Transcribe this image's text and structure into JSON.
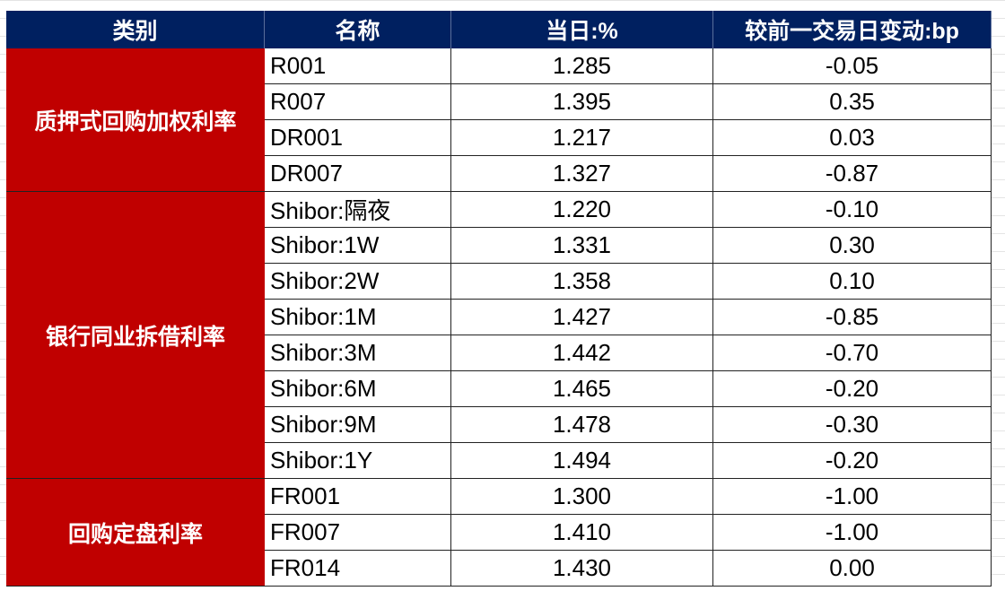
{
  "table": {
    "header": [
      "类别",
      "名称",
      "当日:%",
      "较前一交易日变动:bp"
    ],
    "groups": [
      {
        "category": "质押式回购加权利率",
        "rows": [
          [
            "R001",
            "1.285",
            "-0.05"
          ],
          [
            "R007",
            "1.395",
            "0.35"
          ],
          [
            "DR001",
            "1.217",
            "0.03"
          ],
          [
            "DR007",
            "1.327",
            "-0.87"
          ]
        ]
      },
      {
        "category": "银行同业拆借利率",
        "rows": [
          [
            "Shibor:隔夜",
            "1.220",
            "-0.10"
          ],
          [
            "Shibor:1W",
            "1.331",
            "0.30"
          ],
          [
            "Shibor:2W",
            "1.358",
            "0.10"
          ],
          [
            "Shibor:1M",
            "1.427",
            "-0.85"
          ],
          [
            "Shibor:3M",
            "1.442",
            "-0.70"
          ],
          [
            "Shibor:6M",
            "1.465",
            "-0.20"
          ],
          [
            "Shibor:9M",
            "1.478",
            "-0.30"
          ],
          [
            "Shibor:1Y",
            "1.494",
            "-0.20"
          ]
        ]
      },
      {
        "category": "回购定盘利率",
        "rows": [
          [
            "FR001",
            "1.300",
            "-1.00"
          ],
          [
            "FR007",
            "1.410",
            "-1.00"
          ],
          [
            "FR014",
            "1.430",
            "0.00"
          ]
        ]
      }
    ]
  }
}
